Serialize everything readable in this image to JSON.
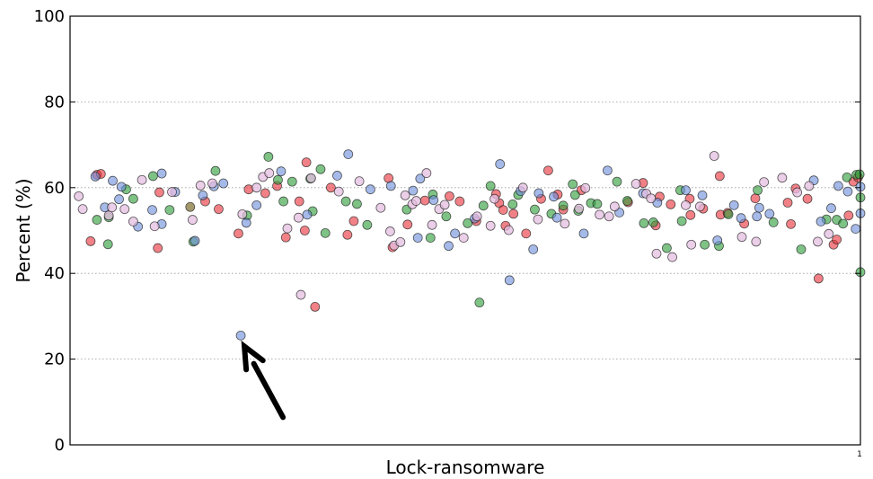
{
  "chart_data": {
    "type": "scatter",
    "xlabel": "Lock-ransomware",
    "ylabel": "Percent (%)",
    "ylim": [
      0,
      100
    ],
    "xlim": [
      0,
      1
    ],
    "yticks": [
      "0",
      "20",
      "40",
      "60",
      "80",
      "100"
    ],
    "xticks": [
      "1"
    ],
    "grid": "horizontal-dotted",
    "colors": {
      "red": "#e8343c",
      "green": "#2e9e3a",
      "blue": "#6d8fdc",
      "pink": "#e4bde0",
      "olive": "#6b5a12",
      "arrow": "#000000"
    },
    "annotation": {
      "type": "arrow",
      "points_to": {
        "x": 0.216,
        "y": 25.5
      }
    },
    "series": [
      {
        "color_key": "red",
        "points": [
          [
            0.026,
            47.5
          ],
          [
            0.034,
            63.0
          ],
          [
            0.039,
            63.2
          ],
          [
            0.111,
            45.9
          ],
          [
            0.113,
            58.9
          ],
          [
            0.171,
            56.8
          ],
          [
            0.188,
            55.0
          ],
          [
            0.213,
            49.3
          ],
          [
            0.226,
            59.6
          ],
          [
            0.247,
            58.7
          ],
          [
            0.262,
            60.4
          ],
          [
            0.273,
            48.4
          ],
          [
            0.29,
            56.8
          ],
          [
            0.297,
            50.0
          ],
          [
            0.299,
            65.9
          ],
          [
            0.31,
            32.2
          ],
          [
            0.33,
            60.0
          ],
          [
            0.351,
            49.0
          ],
          [
            0.359,
            52.2
          ],
          [
            0.403,
            62.2
          ],
          [
            0.408,
            46.1
          ],
          [
            0.427,
            51.4
          ],
          [
            0.449,
            57.0
          ],
          [
            0.48,
            58.0
          ],
          [
            0.493,
            56.8
          ],
          [
            0.514,
            52.2
          ],
          [
            0.539,
            58.5
          ],
          [
            0.543,
            56.4
          ],
          [
            0.548,
            54.8
          ],
          [
            0.551,
            51.1
          ],
          [
            0.561,
            53.9
          ],
          [
            0.577,
            49.3
          ],
          [
            0.596,
            57.4
          ],
          [
            0.605,
            64.0
          ],
          [
            0.617,
            58.4
          ],
          [
            0.624,
            54.9
          ],
          [
            0.647,
            59.4
          ],
          [
            0.706,
            56.6
          ],
          [
            0.725,
            61.1
          ],
          [
            0.741,
            51.2
          ],
          [
            0.746,
            57.9
          ],
          [
            0.76,
            56.1
          ],
          [
            0.784,
            57.4
          ],
          [
            0.785,
            53.6
          ],
          [
            0.801,
            55.1
          ],
          [
            0.823,
            53.7
          ],
          [
            0.822,
            62.7
          ],
          [
            0.832,
            54.1
          ],
          [
            0.853,
            51.6
          ],
          [
            0.867,
            57.5
          ],
          [
            0.908,
            56.5
          ],
          [
            0.912,
            51.5
          ],
          [
            0.918,
            59.8
          ],
          [
            0.933,
            57.4
          ],
          [
            0.947,
            38.8
          ],
          [
            0.966,
            46.7
          ],
          [
            0.97,
            47.9
          ],
          [
            0.985,
            53.5
          ],
          [
            0.991,
            61.4
          ],
          [
            0.997,
            62.4
          ]
        ]
      },
      {
        "color_key": "green",
        "points": [
          [
            0.034,
            52.5
          ],
          [
            0.048,
            46.8
          ],
          [
            0.049,
            53.1
          ],
          [
            0.071,
            59.6
          ],
          [
            0.08,
            57.4
          ],
          [
            0.105,
            62.7
          ],
          [
            0.126,
            54.8
          ],
          [
            0.156,
            47.4
          ],
          [
            0.184,
            63.9
          ],
          [
            0.224,
            53.5
          ],
          [
            0.251,
            67.2
          ],
          [
            0.263,
            61.8
          ],
          [
            0.27,
            56.8
          ],
          [
            0.281,
            61.4
          ],
          [
            0.304,
            62.1
          ],
          [
            0.307,
            54.5
          ],
          [
            0.317,
            64.3
          ],
          [
            0.323,
            49.4
          ],
          [
            0.349,
            56.8
          ],
          [
            0.363,
            56.2
          ],
          [
            0.376,
            51.3
          ],
          [
            0.426,
            54.9
          ],
          [
            0.456,
            48.3
          ],
          [
            0.459,
            58.4
          ],
          [
            0.476,
            53.3
          ],
          [
            0.503,
            51.7
          ],
          [
            0.518,
            33.2
          ],
          [
            0.523,
            55.8
          ],
          [
            0.532,
            60.4
          ],
          [
            0.56,
            56.1
          ],
          [
            0.567,
            58.3
          ],
          [
            0.588,
            54.9
          ],
          [
            0.609,
            53.9
          ],
          [
            0.624,
            55.8
          ],
          [
            0.636,
            60.8
          ],
          [
            0.639,
            58.3
          ],
          [
            0.643,
            54.6
          ],
          [
            0.659,
            56.4
          ],
          [
            0.667,
            56.2
          ],
          [
            0.692,
            61.4
          ],
          [
            0.705,
            56.9
          ],
          [
            0.726,
            51.7
          ],
          [
            0.738,
            51.9
          ],
          [
            0.755,
            45.9
          ],
          [
            0.772,
            59.4
          ],
          [
            0.774,
            52.2
          ],
          [
            0.803,
            46.7
          ],
          [
            0.821,
            46.4
          ],
          [
            0.833,
            53.8
          ],
          [
            0.87,
            59.4
          ],
          [
            0.89,
            51.9
          ],
          [
            0.925,
            45.6
          ],
          [
            0.957,
            52.6
          ],
          [
            0.97,
            52.5
          ],
          [
            0.978,
            51.6
          ],
          [
            0.983,
            62.4
          ],
          [
            0.995,
            63.0
          ],
          [
            0.999,
            63.1
          ],
          [
            1.0,
            57.7
          ],
          [
            1.0,
            40.3
          ]
        ]
      },
      {
        "color_key": "blue",
        "points": [
          [
            0.032,
            62.6
          ],
          [
            0.044,
            55.4
          ],
          [
            0.054,
            61.6
          ],
          [
            0.062,
            57.3
          ],
          [
            0.065,
            60.2
          ],
          [
            0.086,
            50.9
          ],
          [
            0.104,
            54.8
          ],
          [
            0.116,
            63.3
          ],
          [
            0.116,
            51.5
          ],
          [
            0.133,
            59.0
          ],
          [
            0.158,
            47.6
          ],
          [
            0.168,
            58.2
          ],
          [
            0.182,
            60.3
          ],
          [
            0.194,
            61.0
          ],
          [
            0.216,
            25.5
          ],
          [
            0.223,
            51.8
          ],
          [
            0.236,
            55.9
          ],
          [
            0.267,
            63.8
          ],
          [
            0.3,
            53.7
          ],
          [
            0.338,
            62.8
          ],
          [
            0.352,
            67.8
          ],
          [
            0.38,
            59.6
          ],
          [
            0.406,
            60.4
          ],
          [
            0.434,
            59.3
          ],
          [
            0.44,
            48.3
          ],
          [
            0.443,
            62.1
          ],
          [
            0.46,
            57.1
          ],
          [
            0.479,
            46.4
          ],
          [
            0.487,
            49.3
          ],
          [
            0.512,
            52.8
          ],
          [
            0.544,
            65.5
          ],
          [
            0.556,
            38.4
          ],
          [
            0.57,
            59.2
          ],
          [
            0.586,
            45.6
          ],
          [
            0.593,
            58.7
          ],
          [
            0.612,
            57.9
          ],
          [
            0.616,
            53.0
          ],
          [
            0.65,
            49.3
          ],
          [
            0.68,
            64.0
          ],
          [
            0.695,
            54.2
          ],
          [
            0.725,
            58.7
          ],
          [
            0.743,
            56.5
          ],
          [
            0.779,
            59.4
          ],
          [
            0.8,
            58.2
          ],
          [
            0.819,
            47.7
          ],
          [
            0.84,
            55.9
          ],
          [
            0.849,
            52.9
          ],
          [
            0.869,
            53.3
          ],
          [
            0.872,
            55.3
          ],
          [
            0.885,
            53.9
          ],
          [
            0.941,
            61.7
          ],
          [
            0.95,
            52.1
          ],
          [
            0.963,
            55.2
          ],
          [
            0.972,
            60.4
          ],
          [
            0.984,
            59.1
          ],
          [
            0.994,
            50.4
          ],
          [
            1.0,
            54.0
          ],
          [
            1.0,
            60.2
          ]
        ]
      },
      {
        "color_key": "pink",
        "points": [
          [
            0.011,
            58.0
          ],
          [
            0.016,
            55.0
          ],
          [
            0.049,
            53.5
          ],
          [
            0.053,
            55.4
          ],
          [
            0.069,
            55.0
          ],
          [
            0.08,
            52.1
          ],
          [
            0.091,
            61.8
          ],
          [
            0.107,
            51.0
          ],
          [
            0.129,
            59.0
          ],
          [
            0.155,
            52.5
          ],
          [
            0.165,
            60.5
          ],
          [
            0.18,
            61.0
          ],
          [
            0.218,
            53.8
          ],
          [
            0.236,
            60.0
          ],
          [
            0.244,
            62.5
          ],
          [
            0.252,
            63.4
          ],
          [
            0.275,
            50.5
          ],
          [
            0.289,
            53.0
          ],
          [
            0.292,
            35.0
          ],
          [
            0.305,
            62.2
          ],
          [
            0.34,
            59.1
          ],
          [
            0.366,
            61.5
          ],
          [
            0.393,
            55.3
          ],
          [
            0.405,
            49.8
          ],
          [
            0.41,
            46.5
          ],
          [
            0.418,
            47.3
          ],
          [
            0.424,
            58.2
          ],
          [
            0.433,
            56.1
          ],
          [
            0.438,
            56.9
          ],
          [
            0.451,
            63.4
          ],
          [
            0.458,
            51.3
          ],
          [
            0.467,
            55.0
          ],
          [
            0.474,
            56.0
          ],
          [
            0.498,
            48.3
          ],
          [
            0.515,
            53.3
          ],
          [
            0.532,
            51.1
          ],
          [
            0.537,
            57.4
          ],
          [
            0.555,
            50.1
          ],
          [
            0.573,
            60.0
          ],
          [
            0.592,
            52.6
          ],
          [
            0.626,
            51.6
          ],
          [
            0.644,
            55.1
          ],
          [
            0.652,
            59.9
          ],
          [
            0.67,
            53.7
          ],
          [
            0.682,
            53.3
          ],
          [
            0.689,
            55.6
          ],
          [
            0.716,
            60.9
          ],
          [
            0.729,
            58.6
          ],
          [
            0.735,
            57.5
          ],
          [
            0.742,
            44.6
          ],
          [
            0.762,
            43.8
          ],
          [
            0.779,
            55.9
          ],
          [
            0.786,
            46.7
          ],
          [
            0.797,
            55.6
          ],
          [
            0.815,
            67.4
          ],
          [
            0.85,
            48.5
          ],
          [
            0.868,
            47.4
          ],
          [
            0.878,
            61.3
          ],
          [
            0.901,
            62.3
          ],
          [
            0.92,
            58.9
          ],
          [
            0.935,
            60.4
          ],
          [
            0.946,
            47.4
          ],
          [
            0.96,
            49.2
          ]
        ]
      },
      {
        "color_key": "olive",
        "points": [
          [
            0.152,
            55.5
          ]
        ]
      }
    ]
  }
}
